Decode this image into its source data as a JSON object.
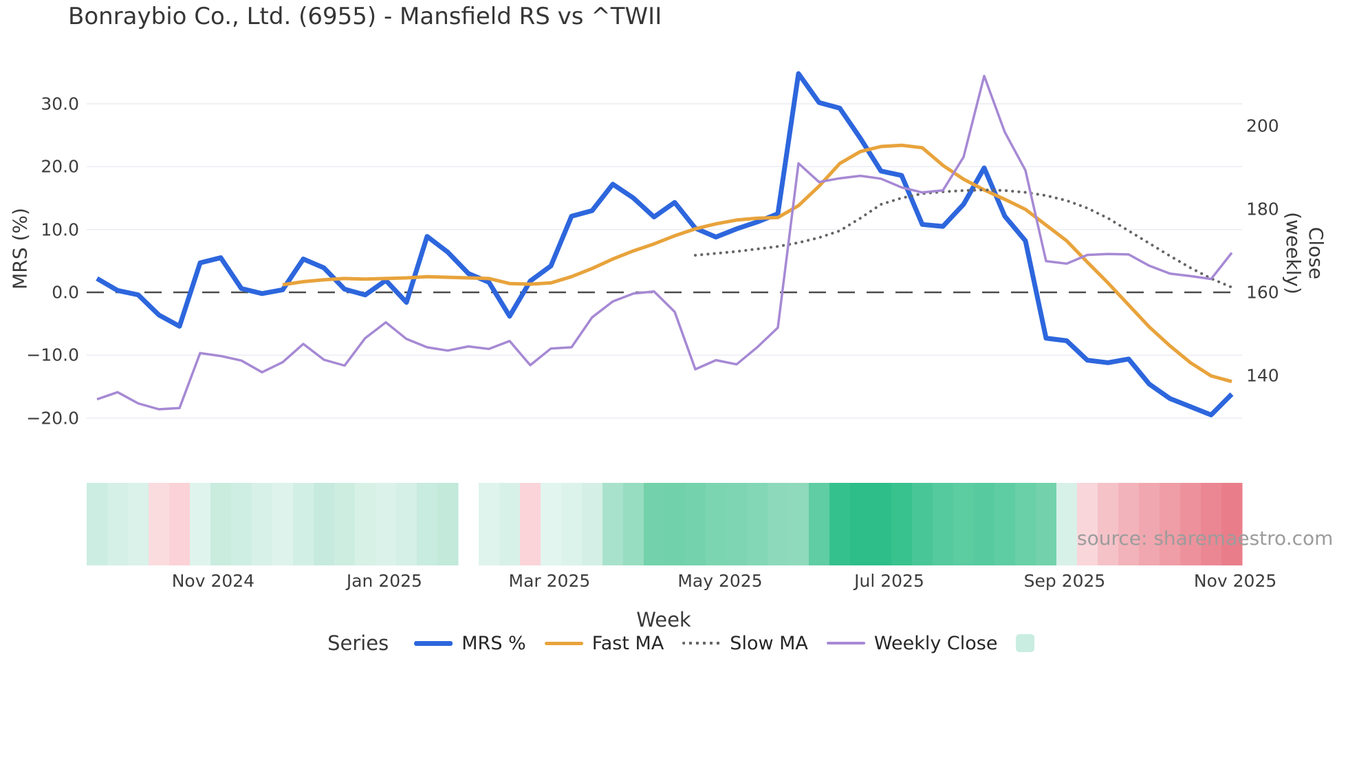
{
  "title": "Bonraybio Co., Ltd. (6955) - Mansfield RS vs ^TWII",
  "source": "source: sharemaestro.com",
  "axes": {
    "left": {
      "label": "MRS (%)",
      "ticks": [
        "30.0",
        "20.0",
        "10.0",
        "0.0",
        "−10.0",
        "−20.0"
      ]
    },
    "right": {
      "label": "Close (weekly)",
      "ticks": [
        "200",
        "180",
        "160",
        "140"
      ]
    },
    "x": {
      "label": "Week",
      "ticks": [
        "Nov 2024",
        "Jan 2025",
        "Mar 2025",
        "May 2025",
        "Jul 2025",
        "Sep 2025",
        "Nov 2025"
      ]
    }
  },
  "legend": {
    "title": "Series",
    "items": [
      {
        "label": "MRS %"
      },
      {
        "label": "Fast MA"
      },
      {
        "label": "Slow MA"
      },
      {
        "label": "Weekly Close"
      }
    ],
    "heat_swatch_color": "#c9ede1"
  },
  "colors": {
    "mrs": "#2d66dd",
    "fast_ma": "#e8a33c",
    "slow_ma": "#666666",
    "weekly_close": "#a689d4",
    "grid": "#ecedf3",
    "zero_line": "#4a4a4a",
    "text": "#3d3d3d",
    "source_text": "#9c9c9c"
  },
  "chart_data": {
    "type": "line",
    "title": "Bonraybio Co., Ltd. (6955) - Mansfield RS vs ^TWII",
    "xlabel": "Week",
    "n_weeks": 56,
    "x_axis": {
      "tick_labels": [
        "Nov 2024",
        "Jan 2025",
        "Mar 2025",
        "May 2025",
        "Jul 2025",
        "Sep 2025",
        "Nov 2025"
      ],
      "tick_week_index": [
        5.63,
        13.93,
        21.93,
        30.2,
        38.4,
        46.9,
        55.17
      ]
    },
    "left_axis": {
      "label": "MRS (%)",
      "ticks": [
        30.0,
        20.0,
        10.0,
        0.0,
        -10.0,
        -20.0
      ],
      "zero_dashed": true
    },
    "right_axis": {
      "label": "Close (weekly)",
      "ticks": [
        200,
        180,
        160,
        140
      ],
      "aligned_to_left_zero": 160
    },
    "grid": true,
    "legend_position": "bottom",
    "series": [
      {
        "name": "MRS %",
        "axis": "left",
        "color": "#2d66dd",
        "width": 7,
        "dash": null,
        "values": [
          2.2,
          0.3,
          -0.4,
          -3.6,
          -5.4,
          4.7,
          5.5,
          0.6,
          -0.2,
          0.4,
          5.3,
          3.9,
          0.5,
          -0.4,
          1.9,
          -1.6,
          8.9,
          6.4,
          3.0,
          1.6,
          -3.8,
          1.8,
          4.2,
          12.1,
          13.0,
          17.2,
          15.0,
          12.0,
          14.3,
          10.2,
          8.8,
          10.1,
          11.2,
          12.5,
          34.8,
          30.2,
          29.3,
          24.5,
          19.3,
          18.6,
          10.8,
          10.5,
          14.0,
          19.8,
          12.1,
          8.2,
          -7.3,
          -7.7,
          -10.8,
          -11.2,
          -10.6,
          -14.6,
          -16.9,
          -18.2,
          -19.5,
          -16.2
        ]
      },
      {
        "name": "Fast MA",
        "axis": "left",
        "color": "#e8a33c",
        "width": 5,
        "dash": null,
        "values": [
          null,
          null,
          null,
          null,
          null,
          null,
          null,
          null,
          null,
          1.2,
          1.7,
          2.0,
          2.2,
          2.1,
          2.2,
          2.3,
          2.5,
          2.4,
          2.3,
          2.2,
          1.4,
          1.3,
          1.5,
          2.5,
          3.8,
          5.3,
          6.6,
          7.7,
          9.0,
          10.1,
          10.9,
          11.5,
          11.8,
          11.9,
          13.8,
          16.9,
          20.5,
          22.4,
          23.2,
          23.4,
          23.0,
          20.2,
          18.0,
          16.3,
          14.8,
          13.2,
          10.7,
          8.2,
          4.8,
          1.5,
          -2.0,
          -5.5,
          -8.5,
          -11.2,
          -13.3,
          -14.2
        ]
      },
      {
        "name": "Slow MA",
        "axis": "left",
        "color": "#666666",
        "width": 4,
        "dash": "0.2 9",
        "values": [
          null,
          null,
          null,
          null,
          null,
          null,
          null,
          null,
          null,
          null,
          null,
          null,
          null,
          null,
          null,
          null,
          null,
          null,
          null,
          null,
          null,
          null,
          null,
          null,
          null,
          null,
          null,
          null,
          null,
          5.9,
          6.2,
          6.5,
          6.9,
          7.3,
          7.9,
          8.7,
          9.8,
          11.8,
          14.0,
          15.0,
          15.7,
          16.0,
          16.2,
          16.3,
          16.2,
          15.9,
          15.4,
          14.6,
          13.4,
          11.8,
          9.8,
          7.8,
          5.8,
          3.9,
          2.2,
          0.8
        ]
      },
      {
        "name": "Weekly Close",
        "axis": "right",
        "color": "#a689d4",
        "width": 3.5,
        "dash": null,
        "values": [
          134.3,
          136.0,
          133.3,
          131.9,
          132.2,
          145.4,
          144.7,
          143.6,
          140.8,
          143.2,
          147.6,
          143.8,
          142.4,
          149.0,
          152.8,
          148.8,
          146.8,
          146.0,
          147.0,
          146.4,
          148.3,
          142.5,
          146.5,
          146.8,
          154.0,
          157.8,
          159.7,
          160.2,
          155.3,
          141.5,
          143.7,
          142.7,
          146.8,
          151.5,
          191.0,
          186.5,
          187.4,
          188.0,
          187.3,
          185.2,
          184.0,
          184.5,
          192.5,
          212.0,
          198.5,
          189.3,
          167.5,
          166.9,
          169.0,
          169.2,
          169.1,
          166.4,
          164.5,
          163.9,
          163.2,
          169.5
        ]
      }
    ],
    "heatmap": {
      "gap_index": 18,
      "colors": [
        "#cceee2",
        "#d5f0e7",
        "#daf2ea",
        "#fadcdf",
        "#fbd2d7",
        "#def4ec",
        "#c9ecdf",
        "#cfeee3",
        "#d8f1e8",
        "#def3eb",
        "#d2efe5",
        "#c6ebde",
        "#cdede1",
        "#d7f1e7",
        "#dbf2ea",
        "#d5f0e6",
        "#c8ecdf",
        "#c2e9da",
        null,
        "#def4ec",
        "#d8f1e8",
        "#fbd4d9",
        "#e2f5ef",
        "#dcf3eb",
        "#d4f0e6",
        "#a9e2cc",
        "#97ddc1",
        "#73d2ab",
        "#71d1aa",
        "#74d2ad",
        "#7cd5b1",
        "#7ed5b3",
        "#83d7b6",
        "#8dd9bb",
        "#8fdabc",
        "#60cda4",
        "#35c18d",
        "#2dbe89",
        "#2dbe89",
        "#38c28e",
        "#49c697",
        "#55ca9e",
        "#5ccca1",
        "#57cb9f",
        "#5fcda3",
        "#69d0a7",
        "#73d2ac",
        "#d8f1e8",
        "#f9d6da",
        "#f5c2c8",
        "#f3b3ba",
        "#f1a7af",
        "#ef9da6",
        "#ed929c",
        "#eb8793",
        "#e97e8a"
      ]
    }
  }
}
